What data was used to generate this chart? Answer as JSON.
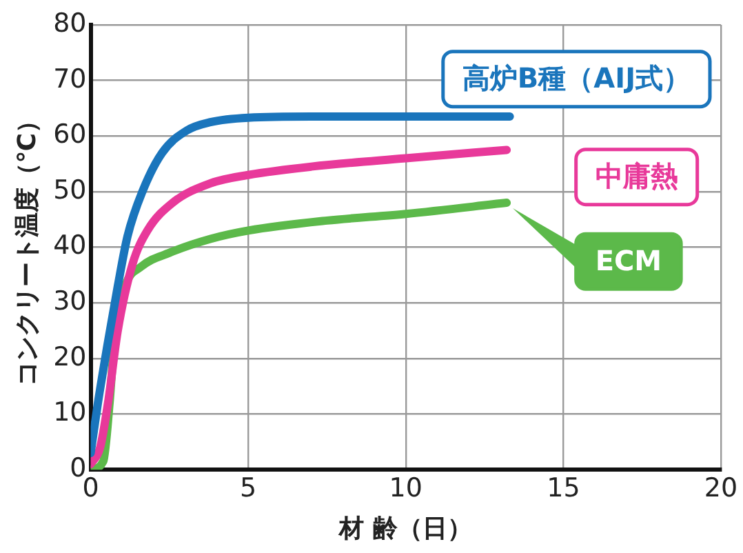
{
  "chart_data": {
    "type": "line",
    "xlabel": "材 齢（日）",
    "ylabel": "コンクリート温度（℃）",
    "xlim": [
      0,
      20
    ],
    "xticks": [
      0,
      5,
      10,
      15,
      20
    ],
    "ylim": [
      0,
      80
    ],
    "yticks": [
      0,
      10,
      20,
      30,
      40,
      50,
      60,
      70,
      80
    ],
    "grid": true,
    "legend": false,
    "marker": "none",
    "line_style": "solid",
    "series": [
      {
        "name": "高炉B種（AIJ式）",
        "color": "#1a75bc",
        "x": [
          0,
          0.23,
          0.55,
          0.86,
          1.17,
          1.64,
          2.27,
          3.05,
          3.8,
          5,
          7,
          10,
          13.3
        ],
        "values": [
          3,
          12,
          23,
          33,
          42,
          50,
          57,
          61,
          62.5,
          63.3,
          63.5,
          63.5,
          63.5
        ]
      },
      {
        "name": "中庸熱",
        "color": "#e8399a",
        "x": [
          0,
          0.3,
          0.55,
          0.86,
          1.33,
          1.8,
          2.6,
          3.8,
          5,
          7,
          10,
          13.2
        ],
        "values": [
          1,
          4,
          12,
          25,
          37,
          43,
          48,
          51.5,
          53,
          54.5,
          56,
          57.5
        ]
      },
      {
        "name": "ECM",
        "color": "#5cb94a",
        "x": [
          0,
          0.4,
          0.6,
          0.75,
          1.1,
          1.6,
          2.5,
          3.8,
          5,
          7.5,
          10,
          13.2
        ],
        "values": [
          0,
          1.5,
          12,
          23,
          33,
          36.5,
          39,
          41.5,
          43,
          44.8,
          46,
          48
        ]
      }
    ]
  }
}
